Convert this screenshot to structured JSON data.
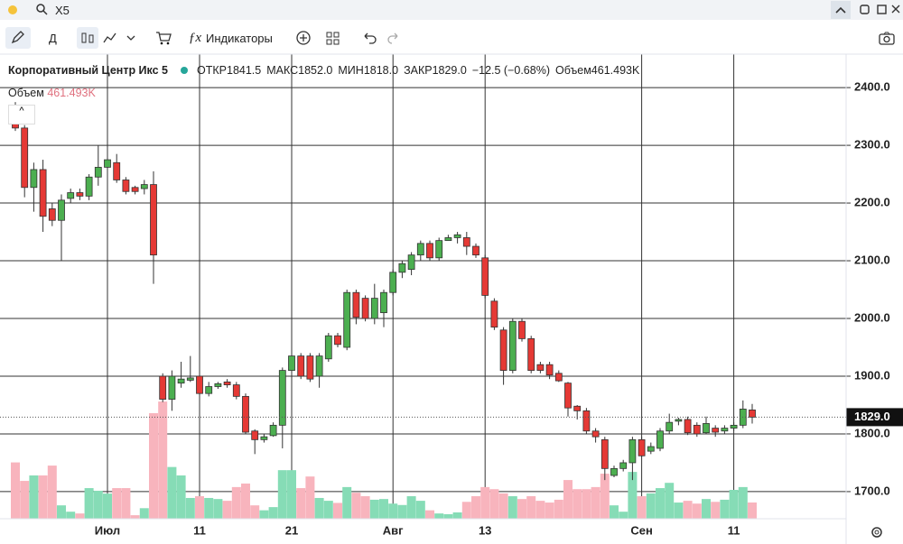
{
  "header": {
    "symbol": "X5"
  },
  "toolbar": {
    "interval": "Д",
    "indicators": "Индикаторы"
  },
  "legend": {
    "name": "Корпоративный Центр Икс 5",
    "items": [
      "ОТКР1841.5",
      "МАКС1852.0",
      "МИН1818.0",
      "ЗАКР1829.0",
      "−12.5 (−0.68%)",
      "Объем461.493K"
    ]
  },
  "chart_data": {
    "type": "candlestick",
    "categories": [
      null,
      null,
      null,
      null,
      null,
      null,
      null,
      null,
      null,
      null,
      "Июл",
      null,
      null,
      null,
      null,
      null,
      null,
      null,
      null,
      null,
      "11",
      null,
      null,
      null,
      null,
      null,
      null,
      null,
      null,
      null,
      "21",
      null,
      null,
      null,
      null,
      null,
      null,
      null,
      null,
      null,
      null,
      "Авг",
      null,
      null,
      null,
      null,
      null,
      null,
      null,
      null,
      null,
      "13",
      null,
      null,
      null,
      null,
      null,
      null,
      null,
      null,
      null,
      null,
      null,
      null,
      null,
      null,
      null,
      null,
      "Сен",
      null,
      null,
      null,
      null,
      null,
      null,
      null,
      null,
      null,
      "11",
      null,
      null
    ],
    "open": [
      2360,
      2330,
      2227,
      2258,
      2190,
      2170,
      2208,
      2218,
      2212,
      2245,
      2262,
      2270,
      2240,
      2227,
      2225,
      2232,
      1900,
      1860,
      1888,
      1893,
      1900,
      1870,
      1882,
      1890,
      1885,
      1865,
      1805,
      1790,
      1797,
      1815,
      1910,
      1935,
      1935,
      1900,
      1930,
      1970,
      1950,
      2045,
      2035,
      2000,
      2010,
      2045,
      2080,
      2085,
      2110,
      2130,
      2105,
      2135,
      2140,
      2140,
      2125,
      2105,
      2030,
      1980,
      1910,
      1995,
      1965,
      1920,
      1920,
      1905,
      1888,
      1848,
      1840,
      1805,
      1790,
      1728,
      1740,
      1750,
      1790,
      1770,
      1775,
      1805,
      1822,
      1825,
      1815,
      1802,
      1810,
      1805,
      1810,
      1815,
      1841.5
    ],
    "high": [
      2375,
      2335,
      2270,
      2275,
      2200,
      2215,
      2225,
      2225,
      2250,
      2300,
      2320,
      2285,
      2245,
      2230,
      2240,
      2255,
      1905,
      1910,
      1925,
      1935,
      1905,
      1890,
      1890,
      1895,
      1890,
      1870,
      1808,
      1800,
      1820,
      1915,
      1940,
      1940,
      1940,
      1940,
      1975,
      1975,
      2050,
      2050,
      2040,
      2060,
      2050,
      2085,
      2100,
      2115,
      2135,
      2135,
      2140,
      2145,
      2150,
      2150,
      2130,
      2110,
      2035,
      1985,
      2000,
      2000,
      1970,
      1925,
      1925,
      1910,
      1890,
      1850,
      1845,
      1810,
      1795,
      1745,
      1755,
      1795,
      1795,
      1785,
      1810,
      1835,
      1828,
      1830,
      1820,
      1830,
      1815,
      1815,
      1820,
      1858,
      1852
    ],
    "low": [
      2325,
      2210,
      2185,
      2150,
      2160,
      2100,
      2200,
      2205,
      2205,
      2230,
      2250,
      2235,
      2215,
      2215,
      2215,
      2060,
      1855,
      1840,
      1880,
      1890,
      1860,
      1865,
      1878,
      1880,
      1860,
      1800,
      1765,
      1785,
      1795,
      1775,
      1905,
      1895,
      1890,
      1880,
      1925,
      1950,
      1945,
      1990,
      1995,
      1990,
      1985,
      2040,
      2070,
      2075,
      2100,
      2100,
      2100,
      2135,
      2130,
      2110,
      2105,
      2035,
      1980,
      1885,
      1905,
      1960,
      1905,
      1905,
      1895,
      1890,
      1830,
      1825,
      1800,
      1785,
      1720,
      1725,
      1735,
      1720,
      1760,
      1765,
      1770,
      1800,
      1815,
      1798,
      1795,
      1800,
      1795,
      1800,
      1805,
      1810,
      1818
    ],
    "close": [
      2330,
      2227,
      2258,
      2177,
      2170,
      2205,
      2218,
      2212,
      2245,
      2262,
      2275,
      2240,
      2220,
      2220,
      2232,
      2110,
      1860,
      1900,
      1895,
      1897,
      1870,
      1882,
      1887,
      1885,
      1865,
      1803,
      1790,
      1795,
      1815,
      1910,
      1935,
      1900,
      1895,
      1935,
      1970,
      1955,
      2045,
      2002,
      2000,
      2035,
      2045,
      2080,
      2095,
      2110,
      2130,
      2105,
      2135,
      2140,
      2145,
      2125,
      2110,
      2040,
      1985,
      1910,
      1995,
      1965,
      1910,
      1910,
      1902,
      1892,
      1845,
      1840,
      1805,
      1795,
      1740,
      1740,
      1750,
      1790,
      1762,
      1778,
      1805,
      1820,
      1825,
      1802,
      1800,
      1818,
      1803,
      1810,
      1815,
      1843,
      1829
    ],
    "volume": {
      "name": "Объем",
      "value_label": "461.493K",
      "values": [
        1600,
        1075,
        1230,
        1230,
        1510,
        380,
        200,
        150,
        870,
        795,
        715,
        870,
        870,
        100,
        300,
        3000,
        3330,
        1470,
        1230,
        590,
        640,
        590,
        560,
        510,
        900,
        1000,
        380,
        240,
        330,
        1380,
        1380,
        870,
        1200,
        590,
        510,
        450,
        900,
        740,
        640,
        540,
        560,
        430,
        390,
        640,
        510,
        240,
        150,
        130,
        180,
        480,
        640,
        900,
        840,
        720,
        640,
        560,
        640,
        510,
        460,
        540,
        1100,
        840,
        840,
        900,
        1280,
        380,
        200,
        1330,
        640,
        720,
        870,
        1020,
        460,
        510,
        430,
        560,
        480,
        540,
        820,
        900,
        461.493
      ]
    },
    "volume_lim": [
      0,
      13200
    ],
    "last_price_label": "1829.0",
    "up_color": "#4caf50",
    "down_color": "#e53935",
    "volume_up_color": "#86dcb6",
    "volume_down_color": "#f8b4bd",
    "ylim": [
      1653,
      2458
    ],
    "yticks": [
      {
        "value": 1700,
        "label": "1700.0"
      },
      {
        "value": 1800,
        "label": "1800.0"
      },
      {
        "value": 1900,
        "label": "1900.0"
      },
      {
        "value": 2000,
        "label": "2000.0"
      },
      {
        "value": 2100,
        "label": "2100.0"
      },
      {
        "value": 2200,
        "label": "2200.0"
      },
      {
        "value": 2300,
        "label": "2300.0"
      },
      {
        "value": 2400,
        "label": "2400.0"
      }
    ],
    "grid": true
  }
}
